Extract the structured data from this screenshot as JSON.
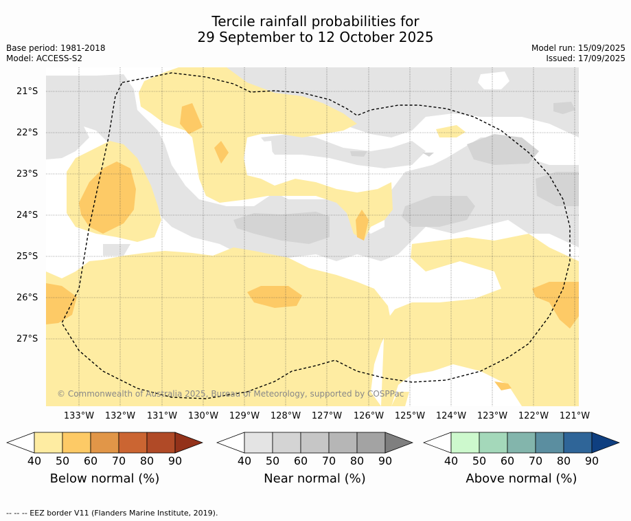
{
  "title_line1": "Tercile rainfall probabilities for",
  "title_line2": "29 September to 12 October 2025",
  "base_period": "Base period: 1981-2018",
  "model": "Model: ACCESS-S2",
  "model_run": "Model run: 15/09/2025",
  "issued": "Issued: 17/09/2025",
  "copyright": "© Commonwealth of Australia 2025, Bureau of Meteorology, supported by COSPPac",
  "lat_labels": [
    "21°S",
    "22°S",
    "23°S",
    "24°S",
    "25°S",
    "26°S",
    "27°S"
  ],
  "lon_labels": [
    "133°W",
    "132°W",
    "131°W",
    "130°W",
    "129°W",
    "128°W",
    "127°W",
    "126°W",
    "125°W",
    "124°W",
    "123°W",
    "122°W",
    "121°W"
  ],
  "colorbars": [
    {
      "title": "Below normal (%)",
      "ticks": [
        "40",
        "50",
        "60",
        "70",
        "80",
        "90"
      ],
      "colors": [
        "#ffffff",
        "#feeca2",
        "#fdca66",
        "#e19648",
        "#cb6532",
        "#b04a27",
        "#93321a"
      ]
    },
    {
      "title": "Near normal (%)",
      "ticks": [
        "40",
        "50",
        "60",
        "70",
        "80",
        "90"
      ],
      "colors": [
        "#ffffff",
        "#e4e4e4",
        "#d4d4d4",
        "#c6c6c6",
        "#b6b6b6",
        "#a3a3a3",
        "#7f7f7f"
      ]
    },
    {
      "title": "Above normal (%)",
      "ticks": [
        "40",
        "50",
        "60",
        "70",
        "80",
        "90"
      ],
      "colors": [
        "#ffffff",
        "#cdf9cd",
        "#a4d8ba",
        "#83b5ac",
        "#5b8ea0",
        "#2f6598",
        "#0f3f80"
      ]
    }
  ],
  "footer": "--  --  -- EEZ border V11 (Flanders Marine Institute, 2019).",
  "colors": {
    "below_40_50": "#feeca2",
    "below_50_60": "#fdca66",
    "near_40_50": "#e4e4e4",
    "near_50_60": "#d4d4d4",
    "grid": "#444444",
    "eez": "#000000"
  }
}
